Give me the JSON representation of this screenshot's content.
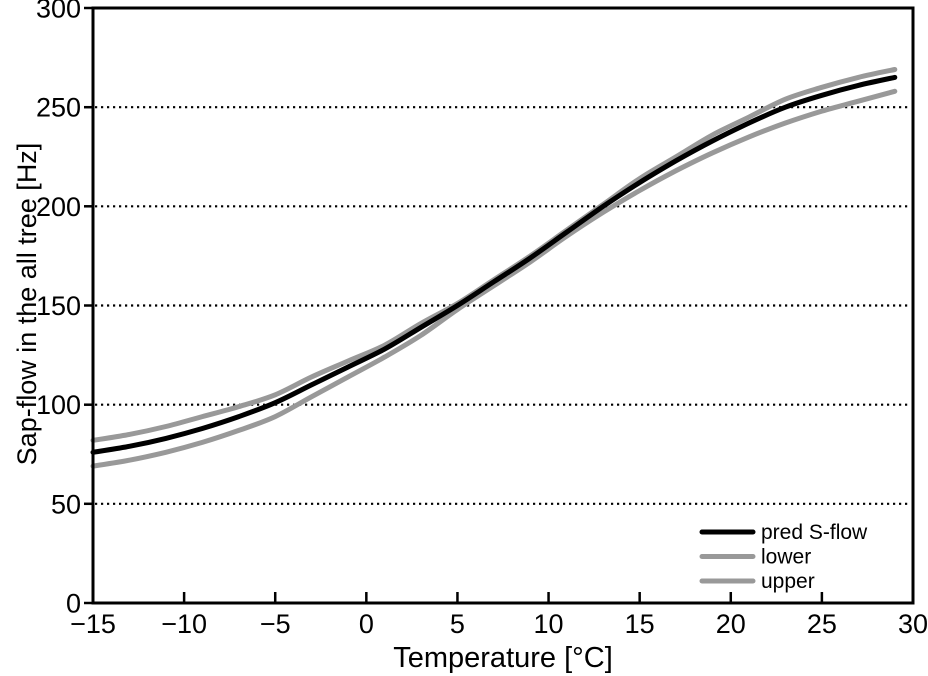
{
  "figure": {
    "background": "#ffffff",
    "frame_color": "#000000",
    "grid_color": "#000000",
    "series_gray": "#999999",
    "series_black": "#000000"
  },
  "chart_data": {
    "type": "line",
    "title": "",
    "xlabel": "Temperature [°C]",
    "ylabel": "Sap-flow in the all tree [Hz]",
    "xlim": [
      -15,
      30
    ],
    "ylim": [
      0,
      300
    ],
    "xticks": [
      -15,
      -10,
      -5,
      0,
      5,
      10,
      15,
      20,
      25,
      30
    ],
    "xtick_labels": [
      "−15",
      "−10",
      "−5",
      "0",
      "5",
      "10",
      "15",
      "20",
      "25",
      "30"
    ],
    "yticks": [
      0,
      50,
      100,
      150,
      200,
      250,
      300
    ],
    "ytick_labels": [
      "0",
      "50",
      "100",
      "150",
      "200",
      "250",
      "300"
    ],
    "gridline_values": [
      50,
      100,
      150,
      200,
      250
    ],
    "grid_style": "dotted-horizontal",
    "legend_position": "lower-right",
    "x": [
      -15,
      -13,
      -11,
      -9,
      -7,
      -5,
      -3,
      -1,
      1,
      3,
      5,
      7,
      9,
      11,
      13,
      15,
      17,
      19,
      21,
      23,
      25,
      27,
      29
    ],
    "series": [
      {
        "name": "pred S-flow",
        "color": "#000000",
        "line_width": 5,
        "values": [
          76,
          79,
          83,
          88,
          94,
          101,
          110,
          119,
          128,
          139,
          150,
          162,
          174,
          187,
          200,
          212,
          223,
          233,
          242,
          250,
          256,
          261,
          265
        ]
      },
      {
        "name": "lower",
        "color": "#999999",
        "line_width": 5,
        "values": [
          69,
          72,
          76,
          81,
          87,
          94,
          104,
          114,
          124,
          135,
          148,
          160,
          172,
          185,
          197,
          208,
          218,
          227,
          235,
          242,
          248,
          253,
          258
        ]
      },
      {
        "name": "upper",
        "color": "#999999",
        "line_width": 5,
        "values": [
          82,
          85,
          89,
          94,
          99,
          105,
          114,
          122,
          130,
          141,
          151,
          163,
          175,
          188,
          201,
          214,
          225,
          236,
          245,
          254,
          260,
          265,
          269
        ]
      }
    ]
  }
}
